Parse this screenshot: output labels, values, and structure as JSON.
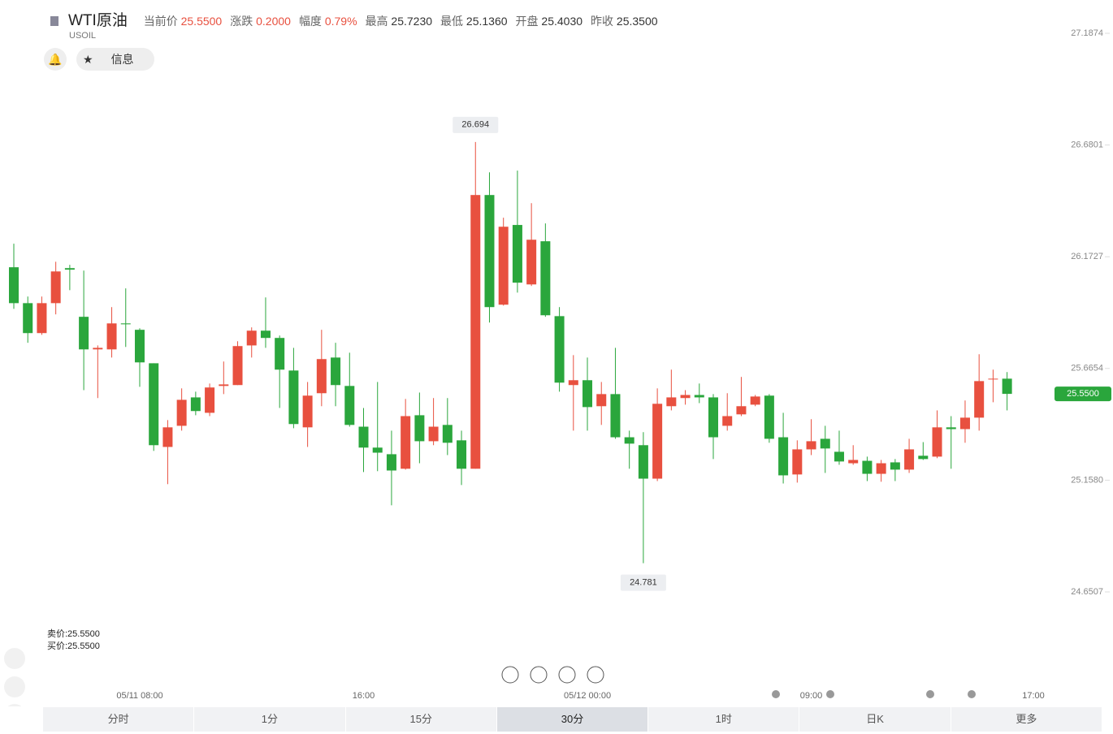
{
  "header": {
    "name": "WTI原油",
    "code": "USOIL",
    "quote": [
      {
        "label": "当前价",
        "value": "25.5500",
        "tone": "up"
      },
      {
        "label": "涨跌",
        "value": "0.2000",
        "tone": "up"
      },
      {
        "label": "幅度",
        "value": "0.79%",
        "tone": "up"
      },
      {
        "label": "最高",
        "value": "25.7230"
      },
      {
        "label": "最低",
        "value": "25.1360"
      },
      {
        "label": "开盘",
        "value": "25.4030"
      },
      {
        "label": "昨收",
        "value": "25.3500"
      }
    ],
    "info_button": "信息"
  },
  "chart_data": {
    "type": "candlestick",
    "up_color": "#e8503f",
    "down_color": "#2aa63c",
    "categories": [
      null,
      null,
      null,
      null,
      null,
      null,
      null,
      null,
      null,
      "05/11 08:00",
      null,
      null,
      null,
      null,
      null,
      null,
      null,
      null,
      null,
      null,
      null,
      null,
      null,
      null,
      null,
      "16:00",
      null,
      null,
      null,
      null,
      null,
      null,
      null,
      null,
      null,
      null,
      null,
      null,
      null,
      null,
      null,
      "05/12 00:00",
      null,
      null,
      null,
      null,
      null,
      null,
      null,
      null,
      null,
      null,
      null,
      null,
      null,
      null,
      null,
      "09:00",
      null,
      null,
      null,
      null,
      null,
      null,
      null,
      null,
      null,
      null,
      null,
      null,
      null,
      null
    ],
    "x_end_label": "17:00",
    "open": [
      26.125,
      25.962,
      25.826,
      25.962,
      26.121,
      25.9,
      25.752,
      25.752,
      25.87,
      25.841,
      25.689,
      25.309,
      25.405,
      25.534,
      25.464,
      25.586,
      25.59,
      25.77,
      25.837,
      25.804,
      25.656,
      25.398,
      25.553,
      25.715,
      25.586,
      25.401,
      25.306,
      25.276,
      25.21,
      25.453,
      25.335,
      25.409,
      25.339,
      25.21,
      26.453,
      25.955,
      26.317,
      26.047,
      26.243,
      25.903,
      25.59,
      25.612,
      25.494,
      25.549,
      25.353,
      25.317,
      25.165,
      25.494,
      25.531,
      25.545,
      25.534,
      25.405,
      25.457,
      25.501,
      25.542,
      25.353,
      25.184,
      25.298,
      25.346,
      25.287,
      25.235,
      25.246,
      25.187,
      25.239,
      25.206,
      25.269,
      25.265,
      25.398,
      25.39,
      25.442,
      25.616,
      25.619
    ],
    "high": [
      26.232,
      25.992,
      25.992,
      26.15,
      26.136,
      26.11,
      25.77,
      25.944,
      26.029,
      25.848,
      25.689,
      25.431,
      25.575,
      25.56,
      25.597,
      25.697,
      25.789,
      25.852,
      25.988,
      25.815,
      25.759,
      25.604,
      25.841,
      25.782,
      25.737,
      25.486,
      25.604,
      25.383,
      25.527,
      25.556,
      25.531,
      25.531,
      25.383,
      26.694,
      26.556,
      26.35,
      26.564,
      26.416,
      26.324,
      25.944,
      25.726,
      25.715,
      25.604,
      25.759,
      25.383,
      25.376,
      25.575,
      25.66,
      25.567,
      25.597,
      25.549,
      25.553,
      25.627,
      25.545,
      25.549,
      25.464,
      25.339,
      25.435,
      25.405,
      25.383,
      25.317,
      25.265,
      25.25,
      25.254,
      25.346,
      25.331,
      25.475,
      25.449,
      25.52,
      25.73,
      25.66,
      25.649
    ],
    "low": [
      25.936,
      25.782,
      25.818,
      25.911,
      26.021,
      25.567,
      25.531,
      25.715,
      25.763,
      25.582,
      25.291,
      25.14,
      25.383,
      25.453,
      25.449,
      25.549,
      25.59,
      25.715,
      25.759,
      25.486,
      25.394,
      25.309,
      25.494,
      25.494,
      25.401,
      25.195,
      25.199,
      25.044,
      25.206,
      25.235,
      25.317,
      25.272,
      25.136,
      25.21,
      25.874,
      25.951,
      26.01,
      26.04,
      25.9,
      25.56,
      25.383,
      25.383,
      25.409,
      25.346,
      25.21,
      24.781,
      25.154,
      25.475,
      25.501,
      25.508,
      25.254,
      25.383,
      25.449,
      25.494,
      25.328,
      25.143,
      25.147,
      25.272,
      25.191,
      25.228,
      25.228,
      25.154,
      25.151,
      25.154,
      25.191,
      25.25,
      25.258,
      25.21,
      25.328,
      25.383,
      25.512,
      25.475
    ],
    "close": [
      25.962,
      25.826,
      25.962,
      26.106,
      26.114,
      25.752,
      25.759,
      25.87,
      25.866,
      25.693,
      25.317,
      25.398,
      25.523,
      25.472,
      25.579,
      25.593,
      25.767,
      25.837,
      25.804,
      25.66,
      25.413,
      25.542,
      25.708,
      25.59,
      25.409,
      25.306,
      25.283,
      25.202,
      25.449,
      25.335,
      25.401,
      25.328,
      25.21,
      26.453,
      25.944,
      26.309,
      26.055,
      26.25,
      25.907,
      25.601,
      25.612,
      25.49,
      25.549,
      25.353,
      25.324,
      25.165,
      25.505,
      25.534,
      25.545,
      25.534,
      25.353,
      25.449,
      25.494,
      25.538,
      25.346,
      25.18,
      25.298,
      25.335,
      25.302,
      25.243,
      25.25,
      25.187,
      25.235,
      25.206,
      25.298,
      25.254,
      25.398,
      25.39,
      25.442,
      25.608,
      25.619,
      25.55
    ],
    "ylim": [
      24.6507,
      27.1874
    ],
    "yticks": [
      24.6507,
      {
        "value": 25.158,
        "label": "25.1580"
      },
      25.6654,
      26.1727,
      26.6801,
      27.1874
    ],
    "max_label": 26.694,
    "min_label": 24.781,
    "last_price": {
      "value": 25.55,
      "label": "25.5500"
    },
    "grid": false
  },
  "bid_ask": [
    "卖价:25.5500",
    "买价:25.5500"
  ],
  "tabs": {
    "items": [
      "分时",
      "1分",
      "15分",
      "30分",
      "1时",
      "日K",
      "更多"
    ],
    "active": "30分"
  }
}
